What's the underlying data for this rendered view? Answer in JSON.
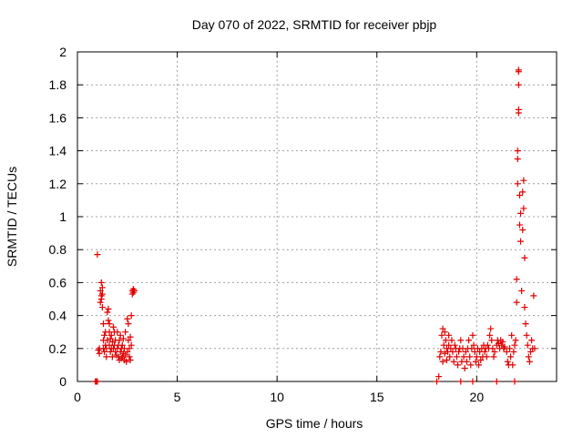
{
  "chart_data": {
    "type": "scatter",
    "title": "Day 070 of 2022, SRMTID for receiver pbjp",
    "xlabel": "GPS time / hours",
    "ylabel": "SRMTID / TECUs",
    "xlim": [
      0,
      24
    ],
    "ylim": [
      0,
      2
    ],
    "xticks": [
      0,
      5,
      10,
      15,
      20
    ],
    "yticks": [
      0,
      0.2,
      0.4,
      0.6,
      0.8,
      1,
      1.2,
      1.4,
      1.6,
      1.8,
      2
    ],
    "ytick_labels": [
      "0",
      "0.2",
      "0.4",
      "0.6",
      "0.8",
      "1",
      "1.2",
      "1.4",
      "1.6",
      "1.8",
      "2"
    ],
    "grid": true,
    "marker": "+",
    "color": "#e00000",
    "series": [
      {
        "name": "SRMTID",
        "points": [
          [
            0.9,
            0.0
          ],
          [
            0.95,
            0.0
          ],
          [
            1.0,
            0.0
          ],
          [
            1.0,
            0.77
          ],
          [
            1.05,
            0.19
          ],
          [
            1.1,
            0.17
          ],
          [
            1.1,
            0.2
          ],
          [
            1.15,
            0.48
          ],
          [
            1.15,
            0.55
          ],
          [
            1.2,
            0.6
          ],
          [
            1.2,
            0.5
          ],
          [
            1.2,
            0.52
          ],
          [
            1.25,
            0.57
          ],
          [
            1.25,
            0.53
          ],
          [
            1.25,
            0.45
          ],
          [
            1.3,
            0.35
          ],
          [
            1.3,
            0.25
          ],
          [
            1.3,
            0.2
          ],
          [
            1.35,
            0.28
          ],
          [
            1.35,
            0.18
          ],
          [
            1.4,
            0.22
          ],
          [
            1.4,
            0.3
          ],
          [
            1.45,
            0.2
          ],
          [
            1.45,
            0.15
          ],
          [
            1.5,
            0.25
          ],
          [
            1.5,
            0.42
          ],
          [
            1.55,
            0.44
          ],
          [
            1.55,
            0.37
          ],
          [
            1.6,
            0.3
          ],
          [
            1.6,
            0.35
          ],
          [
            1.6,
            0.22
          ],
          [
            1.65,
            0.18
          ],
          [
            1.65,
            0.26
          ],
          [
            1.7,
            0.2
          ],
          [
            1.7,
            0.28
          ],
          [
            1.75,
            0.24
          ],
          [
            1.75,
            0.15
          ],
          [
            1.8,
            0.2
          ],
          [
            1.8,
            0.33
          ],
          [
            1.85,
            0.3
          ],
          [
            1.85,
            0.22
          ],
          [
            1.9,
            0.18
          ],
          [
            1.9,
            0.25
          ],
          [
            1.95,
            0.16
          ],
          [
            2.0,
            0.2
          ],
          [
            2.0,
            0.3
          ],
          [
            2.05,
            0.22
          ],
          [
            2.05,
            0.15
          ],
          [
            2.1,
            0.25
          ],
          [
            2.1,
            0.13
          ],
          [
            2.15,
            0.18
          ],
          [
            2.15,
            0.28
          ],
          [
            2.2,
            0.2
          ],
          [
            2.2,
            0.14
          ],
          [
            2.25,
            0.15
          ],
          [
            2.25,
            0.22
          ],
          [
            2.3,
            0.26
          ],
          [
            2.3,
            0.17
          ],
          [
            2.35,
            0.13
          ],
          [
            2.35,
            0.2
          ],
          [
            2.4,
            0.3
          ],
          [
            2.4,
            0.16
          ],
          [
            2.45,
            0.12
          ],
          [
            2.5,
            0.18
          ],
          [
            2.5,
            0.38
          ],
          [
            2.55,
            0.35
          ],
          [
            2.55,
            0.25
          ],
          [
            2.6,
            0.15
          ],
          [
            2.6,
            0.2
          ],
          [
            2.65,
            0.13
          ],
          [
            2.65,
            0.27
          ],
          [
            2.7,
            0.22
          ],
          [
            2.7,
            0.4
          ],
          [
            2.75,
            0.55
          ],
          [
            2.75,
            0.53
          ],
          [
            2.8,
            0.56
          ],
          [
            2.8,
            0.54
          ],
          [
            2.85,
            0.55
          ],
          [
            18.0,
            0.0
          ],
          [
            18.1,
            0.03
          ],
          [
            18.15,
            0.15
          ],
          [
            18.2,
            0.18
          ],
          [
            18.25,
            0.28
          ],
          [
            18.3,
            0.12
          ],
          [
            18.3,
            0.32
          ],
          [
            18.35,
            0.22
          ],
          [
            18.4,
            0.3
          ],
          [
            18.4,
            0.17
          ],
          [
            18.45,
            0.25
          ],
          [
            18.5,
            0.2
          ],
          [
            18.5,
            0.13
          ],
          [
            18.55,
            0.18
          ],
          [
            18.6,
            0.22
          ],
          [
            18.6,
            0.28
          ],
          [
            18.65,
            0.15
          ],
          [
            18.7,
            0.2
          ],
          [
            18.75,
            0.25
          ],
          [
            18.8,
            0.18
          ],
          [
            18.85,
            0.12
          ],
          [
            18.9,
            0.22
          ],
          [
            18.95,
            0.2
          ],
          [
            19.0,
            0.15
          ],
          [
            19.05,
            0.1
          ],
          [
            19.1,
            0.18
          ],
          [
            19.15,
            0.2
          ],
          [
            19.2,
            0.0
          ],
          [
            19.2,
            0.25
          ],
          [
            19.25,
            0.12
          ],
          [
            19.3,
            0.2
          ],
          [
            19.35,
            0.15
          ],
          [
            19.4,
            0.08
          ],
          [
            19.45,
            0.18
          ],
          [
            19.5,
            0.12
          ],
          [
            19.55,
            0.2
          ],
          [
            19.6,
            0.25
          ],
          [
            19.65,
            0.15
          ],
          [
            19.7,
            0.1
          ],
          [
            19.75,
            0.2
          ],
          [
            19.8,
            0.0
          ],
          [
            19.8,
            0.28
          ],
          [
            19.85,
            0.22
          ],
          [
            19.9,
            0.18
          ],
          [
            19.95,
            0.12
          ],
          [
            20.0,
            0.15
          ],
          [
            20.05,
            0.2
          ],
          [
            20.1,
            0.1
          ],
          [
            20.15,
            0.18
          ],
          [
            20.2,
            0.13
          ],
          [
            20.25,
            0.2
          ],
          [
            20.3,
            0.15
          ],
          [
            20.35,
            0.22
          ],
          [
            20.4,
            0.18
          ],
          [
            20.45,
            0.2
          ],
          [
            20.5,
            0.15
          ],
          [
            20.55,
            0.22
          ],
          [
            20.6,
            0.2
          ],
          [
            20.65,
            0.28
          ],
          [
            20.7,
            0.32
          ],
          [
            20.75,
            0.25
          ],
          [
            20.8,
            0.2
          ],
          [
            20.85,
            0.15
          ],
          [
            20.9,
            0.18
          ],
          [
            21.0,
            0.0
          ],
          [
            21.0,
            0.22
          ],
          [
            21.05,
            0.25
          ],
          [
            21.1,
            0.23
          ],
          [
            21.15,
            0.2
          ],
          [
            21.2,
            0.25
          ],
          [
            21.25,
            0.22
          ],
          [
            21.3,
            0.24
          ],
          [
            21.35,
            0.2
          ],
          [
            21.4,
            0.21
          ],
          [
            21.5,
            0.18
          ],
          [
            21.55,
            0.12
          ],
          [
            21.6,
            0.1
          ],
          [
            21.65,
            0.2
          ],
          [
            21.7,
            0.15
          ],
          [
            21.75,
            0.28
          ],
          [
            21.8,
            0.1
          ],
          [
            21.85,
            0.18
          ],
          [
            21.9,
            0.0
          ],
          [
            21.9,
            0.22
          ],
          [
            21.95,
            0.25
          ],
          [
            22.0,
            0.48
          ],
          [
            22.0,
            0.62
          ],
          [
            22.05,
            1.35
          ],
          [
            22.05,
            1.4
          ],
          [
            22.05,
            1.2
          ],
          [
            22.1,
            1.63
          ],
          [
            22.1,
            1.65
          ],
          [
            22.1,
            1.8
          ],
          [
            22.1,
            1.88
          ],
          [
            22.1,
            1.89
          ],
          [
            22.15,
            1.13
          ],
          [
            22.15,
            0.95
          ],
          [
            22.2,
            1.02
          ],
          [
            22.2,
            0.85
          ],
          [
            22.25,
            0.55
          ],
          [
            22.3,
            1.15
          ],
          [
            22.3,
            0.92
          ],
          [
            22.35,
            1.22
          ],
          [
            22.35,
            1.05
          ],
          [
            22.4,
            0.75
          ],
          [
            22.4,
            0.45
          ],
          [
            22.45,
            0.35
          ],
          [
            22.5,
            0.28
          ],
          [
            22.55,
            0.22
          ],
          [
            22.6,
            0.15
          ],
          [
            22.65,
            0.12
          ],
          [
            22.7,
            0.18
          ],
          [
            22.75,
            0.25
          ],
          [
            22.8,
            0.2
          ],
          [
            22.85,
            0.52
          ],
          [
            22.9,
            0.2
          ]
        ]
      }
    ]
  }
}
